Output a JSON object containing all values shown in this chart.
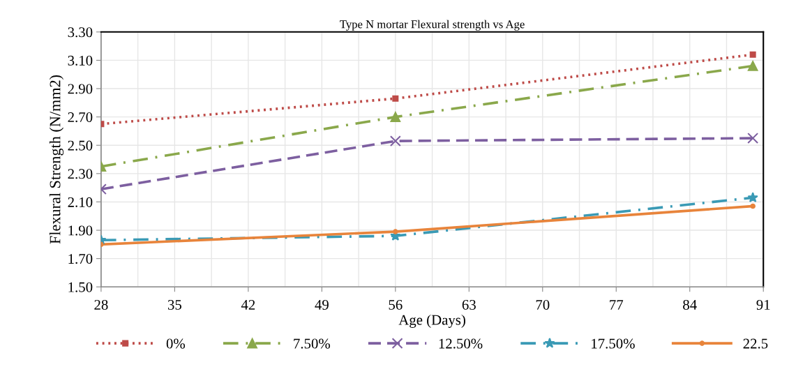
{
  "chart_data": {
    "type": "line",
    "title": "Type N mortar Flexural strength vs Age",
    "xlabel": "Age (Days)",
    "ylabel": "Flexural Strength (N/mm2)",
    "x": [
      28,
      56,
      90
    ],
    "series": [
      {
        "name": "0%",
        "color": "#be4b48",
        "values": [
          2.65,
          2.83,
          3.14
        ],
        "marker": "square",
        "line_style": "dotted"
      },
      {
        "name": "7.50%",
        "color": "#8aa84b",
        "values": [
          2.35,
          2.7,
          3.06
        ],
        "marker": "triangle",
        "line_style": "dashdot"
      },
      {
        "name": "12.50%",
        "color": "#7d5fa0",
        "values": [
          2.19,
          2.53,
          2.55
        ],
        "marker": "cross",
        "line_style": "dashed"
      },
      {
        "name": "17.50%",
        "color": "#3a9ab5",
        "values": [
          1.83,
          1.86,
          2.13
        ],
        "marker": "star",
        "line_style": "dashdot"
      },
      {
        "name": "22.5",
        "color": "#e8843b",
        "values": [
          1.8,
          1.89,
          2.07
        ],
        "marker": "circle",
        "line_style": "solid"
      }
    ],
    "xlim": [
      28,
      91
    ],
    "xticks": [
      28,
      35,
      42,
      49,
      56,
      63,
      70,
      77,
      84,
      91
    ],
    "ylim": [
      1.5,
      3.3
    ],
    "yticks": [
      {
        "value": 1.5,
        "label": "1.50"
      },
      {
        "value": 1.7,
        "label": "1.70"
      },
      {
        "value": 1.9,
        "label": "1.90"
      },
      {
        "value": 2.1,
        "label": "2.10"
      },
      {
        "value": 2.3,
        "label": "2.30"
      },
      {
        "value": 2.5,
        "label": "2.50"
      },
      {
        "value": 2.7,
        "label": "2.70"
      },
      {
        "value": 2.9,
        "label": "2.90"
      },
      {
        "value": 3.1,
        "label": "3.10"
      },
      {
        "value": 3.3,
        "label": "3.30"
      }
    ],
    "grid": true,
    "legend": "bottom"
  }
}
